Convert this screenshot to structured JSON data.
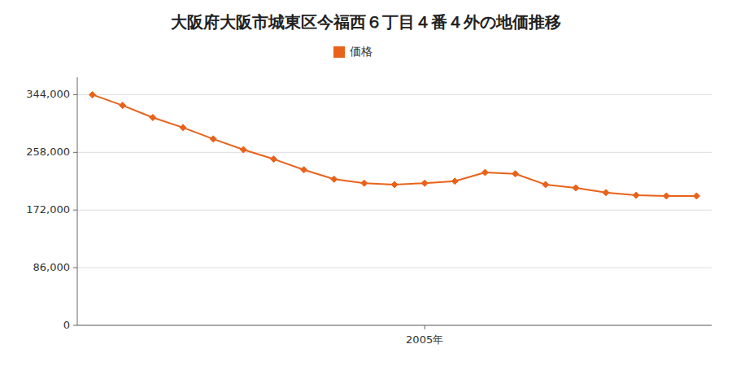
{
  "chart_data": {
    "type": "line",
    "title": "大阪府大阪市城東区今福西６丁目４番４外の地価推移",
    "x": [
      1994,
      1995,
      1996,
      1997,
      1998,
      1999,
      2000,
      2001,
      2002,
      2003,
      2004,
      2005,
      2006,
      2007,
      2008,
      2009,
      2010,
      2011,
      2012,
      2013,
      2014
    ],
    "series": [
      {
        "name": "価格",
        "color": "#e8621a",
        "marker": "diamond",
        "values": [
          344000,
          328000,
          310000,
          295000,
          278000,
          262000,
          248000,
          232000,
          218000,
          212000,
          210000,
          212000,
          215000,
          228000,
          226000,
          210000,
          205000,
          198000,
          194000,
          193000,
          193000
        ]
      }
    ],
    "xlim": [
      1993.5,
      2014.5
    ],
    "xticks": [
      {
        "value": 2005,
        "label": "2005年"
      }
    ],
    "ylim": [
      0,
      370000
    ],
    "yticks": [
      0,
      {
        "value": 86000,
        "label": "86,000"
      },
      {
        "value": 172000,
        "label": "172,000"
      },
      {
        "value": 258000,
        "label": "258,000"
      },
      {
        "value": 344000,
        "label": "344,000"
      }
    ],
    "grid": true,
    "legend": "top"
  }
}
